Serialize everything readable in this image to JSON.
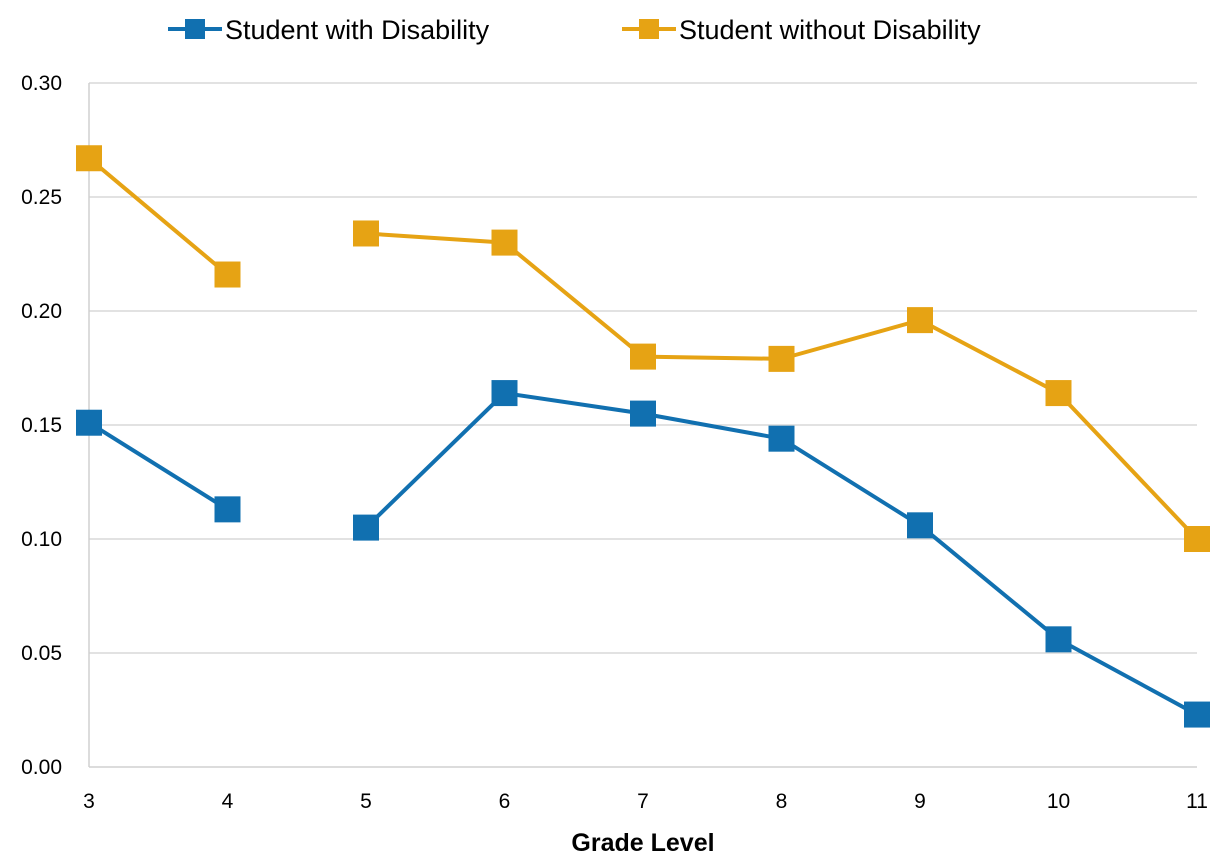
{
  "chart_data": {
    "type": "line",
    "title": "",
    "xlabel": "Grade Level",
    "ylabel": "",
    "categories": [
      "3",
      "4",
      "5",
      "6",
      "7",
      "8",
      "9",
      "10",
      "11"
    ],
    "ylim": [
      0,
      0.3
    ],
    "yticks": [
      "0.00",
      "0.05",
      "0.10",
      "0.15",
      "0.20",
      "0.25",
      "0.30"
    ],
    "grid": "horizontal",
    "legend_position": "top",
    "series": [
      {
        "name": "Student with Disability",
        "color": "#1170b0",
        "marker": "square",
        "values": [
          0.151,
          0.113,
          0.105,
          0.164,
          0.155,
          0.144,
          0.106,
          0.056,
          0.023
        ],
        "breaks_after": [
          "4"
        ]
      },
      {
        "name": "Student without Disability",
        "color": "#e6a314",
        "marker": "square",
        "values": [
          0.267,
          0.216,
          0.234,
          0.23,
          0.18,
          0.179,
          0.196,
          0.164,
          0.1
        ],
        "breaks_after": [
          "4"
        ]
      }
    ]
  }
}
